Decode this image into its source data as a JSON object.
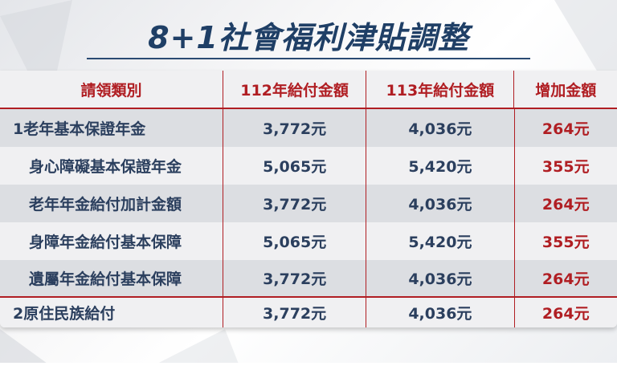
{
  "title": "8+1社會福利津貼調整",
  "colors": {
    "title": "#1f3f66",
    "accent_red": "#b01e23",
    "row_gray": "#dcdee2"
  },
  "table": {
    "headers": [
      "請領類別",
      "112年給付金額",
      "113年給付金額",
      "增加金額"
    ],
    "rows": [
      {
        "category": "1老年基本保證年金",
        "y112": "3,772元",
        "y113": "4,036元",
        "increase": "264元"
      },
      {
        "category": "身心障礙基本保證年金",
        "y112": "5,065元",
        "y113": "5,420元",
        "increase": "355元"
      },
      {
        "category": "老年年金給付加計金額",
        "y112": "3,772元",
        "y113": "4,036元",
        "increase": "264元"
      },
      {
        "category": "身障年金給付基本保障",
        "y112": "5,065元",
        "y113": "5,420元",
        "increase": "355元"
      },
      {
        "category": "遺屬年金給付基本保障",
        "y112": "3,772元",
        "y113": "4,036元",
        "increase": "264元"
      },
      {
        "category": "2原住民族給付",
        "y112": "3,772元",
        "y113": "4,036元",
        "increase": "264元"
      }
    ]
  }
}
